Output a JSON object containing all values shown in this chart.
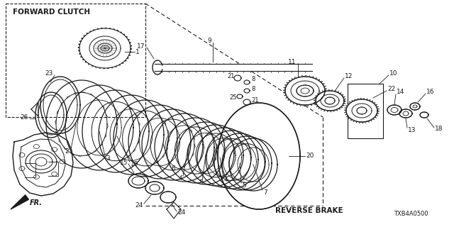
{
  "title": "FORWARD CLUTCH / REVERSE BRAKE",
  "diagram_code": "TXB4A0500",
  "bg_color": "#ffffff",
  "line_color": "#1a1a1a",
  "forward_clutch_label": "FORWARD CLUTCH",
  "reverse_brake_label": "REVERSE BRAKE",
  "fr_label": "FR.",
  "figsize": [
    6.4,
    3.2
  ],
  "dpi": 100
}
